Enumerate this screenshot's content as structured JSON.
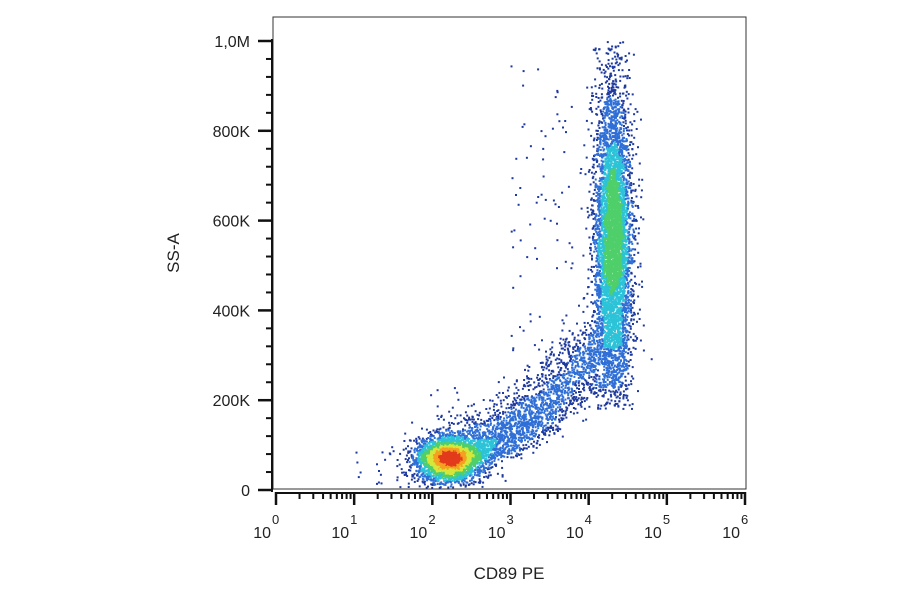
{
  "chart_data": {
    "type": "scatter",
    "subtype": "flow-cytometry density dot plot",
    "xlabel": "CD89 PE",
    "ylabel": "SS-A",
    "x_scale": "log10",
    "x_range_log10": [
      0,
      6
    ],
    "y_range": [
      0,
      1000000
    ],
    "x_tick_labels": [
      {
        "base": "10",
        "exp": "0",
        "value": 1
      },
      {
        "base": "10",
        "exp": "1",
        "value": 10
      },
      {
        "base": "10",
        "exp": "2",
        "value": 100
      },
      {
        "base": "10",
        "exp": "3",
        "value": 1000
      },
      {
        "base": "10",
        "exp": "4",
        "value": 10000
      },
      {
        "base": "10",
        "exp": "5",
        "value": 100000
      },
      {
        "base": "10",
        "exp": "6",
        "value": 1000000
      }
    ],
    "y_ticks": [
      {
        "label": "0",
        "value": 0
      },
      {
        "label": "200K",
        "value": 200000
      },
      {
        "label": "400K",
        "value": 400000
      },
      {
        "label": "600K",
        "value": 600000
      },
      {
        "label": "800K",
        "value": 800000
      },
      {
        "label": "1,0M",
        "value": 1000000
      }
    ],
    "grid": false,
    "legend": "none",
    "populations": [
      {
        "name_shown": "",
        "center_log10_x": 2.2,
        "center_y": 70000,
        "spread_log10_x": 0.22,
        "spread_y": 25000,
        "events": 3000
      },
      {
        "name_shown": "",
        "center_log10_x": 4.3,
        "center_y": 560000,
        "spread_log10_x": 0.12,
        "spread_y": 170000,
        "events": 5500
      }
    ],
    "density_colors": [
      "#1f3a9e",
      "#2f6fd6",
      "#2cc3d8",
      "#4fcf6a",
      "#d6e63a",
      "#f5a020",
      "#e23b1b"
    ]
  }
}
